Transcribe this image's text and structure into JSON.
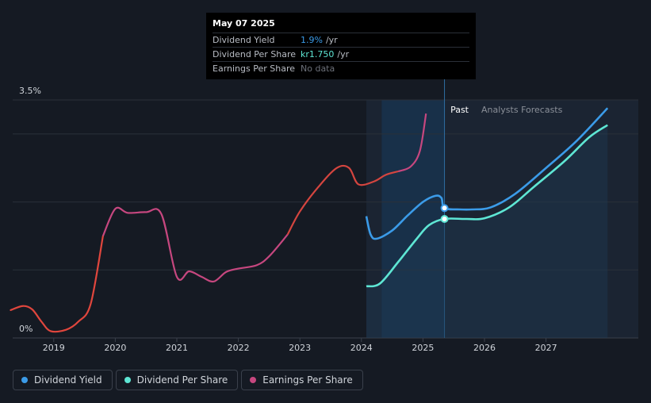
{
  "tooltip": {
    "date": "May 07 2025",
    "rows": [
      {
        "label": "Dividend Yield",
        "value": "1.9%",
        "unit": "/yr",
        "color": "#3b9be8"
      },
      {
        "label": "Dividend Per Share",
        "value": "kr1.750",
        "unit": "/yr",
        "color": "#5ee6d4"
      },
      {
        "label": "Earnings Per Share",
        "value": "No data",
        "unit": "",
        "color": "#6c7079"
      }
    ]
  },
  "legend": [
    {
      "label": "Dividend Yield",
      "color": "#3b9be8"
    },
    {
      "label": "Dividend Per Share",
      "color": "#5ee6d4"
    },
    {
      "label": "Earnings Per Share",
      "color": "#c6477f"
    }
  ],
  "chart_data": {
    "type": "line",
    "y_tick_labels": [
      "3.5%",
      "0%"
    ],
    "ylim": [
      0,
      3.5
    ],
    "xlim": [
      2018.3,
      2028.0
    ],
    "x_tick_labels": [
      "2019",
      "2020",
      "2021",
      "2022",
      "2023",
      "2024",
      "2025",
      "2026",
      "2027"
    ],
    "x_ticks": [
      2019,
      2020,
      2021,
      2022,
      2023,
      2024,
      2025,
      2026,
      2027
    ],
    "region_labels": {
      "past": "Past",
      "forecast": "Analysts Forecasts"
    },
    "past_boundary_x": 2025.35,
    "past_shade_start_x": 2024.33,
    "grid": true,
    "series": [
      {
        "name": "Dividend Yield",
        "color": "#3b9be8",
        "points": [
          [
            2024.08,
            1.79
          ],
          [
            2024.15,
            1.52
          ],
          [
            2024.25,
            1.46
          ],
          [
            2024.5,
            1.58
          ],
          [
            2024.75,
            1.8
          ],
          [
            2025.0,
            2.0
          ],
          [
            2025.2,
            2.09
          ],
          [
            2025.3,
            2.06
          ],
          [
            2025.35,
            1.91
          ],
          [
            2025.6,
            1.89
          ],
          [
            2025.8,
            1.89
          ],
          [
            2026.1,
            1.92
          ],
          [
            2026.5,
            2.12
          ],
          [
            2027.0,
            2.5
          ],
          [
            2027.5,
            2.9
          ],
          [
            2028.0,
            3.38
          ]
        ]
      },
      {
        "name": "Dividend Per Share",
        "color": "#5ee6d4",
        "points": [
          [
            2024.08,
            0.76
          ],
          [
            2024.3,
            0.8
          ],
          [
            2024.6,
            1.12
          ],
          [
            2024.9,
            1.46
          ],
          [
            2025.1,
            1.66
          ],
          [
            2025.35,
            1.75
          ],
          [
            2025.7,
            1.75
          ],
          [
            2026.0,
            1.76
          ],
          [
            2026.4,
            1.92
          ],
          [
            2026.8,
            2.22
          ],
          [
            2027.3,
            2.6
          ],
          [
            2027.7,
            2.95
          ],
          [
            2028.0,
            3.13
          ]
        ]
      },
      {
        "name": "Earnings Per Share",
        "color": "#c6477f",
        "points": [
          [
            2018.3,
            0.41
          ],
          [
            2018.5,
            0.47
          ],
          [
            2018.65,
            0.42
          ],
          [
            2018.8,
            0.24
          ],
          [
            2018.95,
            0.1
          ],
          [
            2019.2,
            0.12
          ],
          [
            2019.4,
            0.24
          ],
          [
            2019.6,
            0.5
          ],
          [
            2019.8,
            1.5
          ],
          [
            2020.0,
            1.9
          ],
          [
            2020.2,
            1.84
          ],
          [
            2020.5,
            1.85
          ],
          [
            2020.75,
            1.82
          ],
          [
            2021.0,
            0.9
          ],
          [
            2021.2,
            0.98
          ],
          [
            2021.4,
            0.9
          ],
          [
            2021.6,
            0.83
          ],
          [
            2021.8,
            0.97
          ],
          [
            2022.0,
            1.02
          ],
          [
            2022.3,
            1.07
          ],
          [
            2022.5,
            1.2
          ],
          [
            2022.8,
            1.52
          ],
          [
            2023.0,
            1.86
          ],
          [
            2023.3,
            2.22
          ],
          [
            2023.6,
            2.5
          ],
          [
            2023.8,
            2.5
          ],
          [
            2023.95,
            2.26
          ],
          [
            2024.2,
            2.3
          ],
          [
            2024.4,
            2.4
          ],
          [
            2024.6,
            2.45
          ],
          [
            2024.8,
            2.52
          ],
          [
            2024.95,
            2.75
          ],
          [
            2025.05,
            3.3
          ]
        ]
      }
    ]
  }
}
